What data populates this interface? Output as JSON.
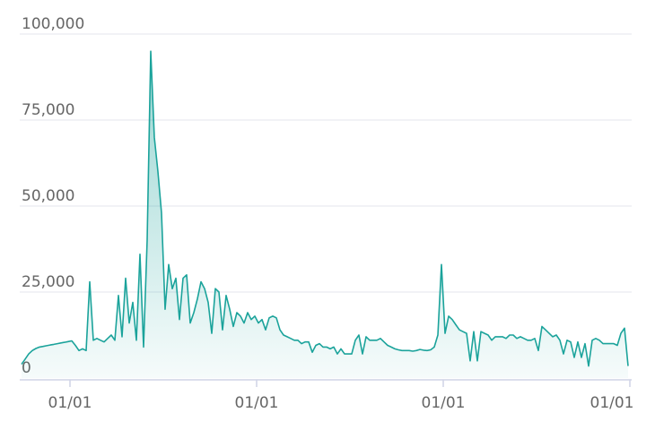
{
  "chart_data": {
    "type": "area",
    "color": "#1ba39b",
    "values": [
      4000,
      5500,
      7000,
      8000,
      8600,
      9000,
      9200,
      9400,
      9600,
      9800,
      10000,
      10200,
      10400,
      10600,
      10800,
      9500,
      8000,
      8500,
      8000,
      28000,
      11000,
      11500,
      11000,
      10500,
      11500,
      12500,
      11000,
      24000,
      12000,
      29000,
      16000,
      22000,
      11000,
      36000,
      9000,
      40000,
      95000,
      70000,
      60000,
      48000,
      20000,
      33000,
      26000,
      29000,
      17000,
      29000,
      30000,
      16000,
      19000,
      23000,
      28000,
      26000,
      22000,
      13000,
      26000,
      25000,
      14000,
      24000,
      20000,
      15000,
      19000,
      18000,
      16000,
      19000,
      17000,
      18000,
      16000,
      17000,
      14000,
      17500,
      18000,
      17500,
      14000,
      12500,
      12000,
      11500,
      11000,
      11000,
      10000,
      10500,
      10500,
      7500,
      9500,
      10000,
      9000,
      9000,
      8500,
      9000,
      7000,
      8500,
      7000,
      7000,
      7000,
      11000,
      12500,
      7000,
      12000,
      11000,
      11000,
      11000,
      11500,
      10500,
      9500,
      9000,
      8500,
      8200,
      8000,
      8000,
      8000,
      7800,
      8000,
      8300,
      8100,
      8000,
      8200,
      9000,
      12500,
      33000,
      13000,
      18000,
      17000,
      15500,
      14000,
      13500,
      13000,
      5000,
      13500,
      5000,
      13500,
      13000,
      12500,
      11000,
      12000,
      12000,
      12000,
      11500,
      12500,
      12500,
      11500,
      12000,
      11500,
      11000,
      11000,
      11500,
      8000,
      15000,
      14000,
      13000,
      12000,
      12500,
      11000,
      7000,
      11000,
      10500,
      6000,
      10500,
      6000,
      10000,
      3500,
      11000,
      11500,
      11000,
      10000,
      10000,
      10000,
      10000,
      9500,
      13000,
      14500,
      3500
    ],
    "xlim": [
      0,
      170
    ],
    "xticks": [
      {
        "value": 14,
        "label": "01/01"
      },
      {
        "value": 66,
        "label": "01/01"
      },
      {
        "value": 118,
        "label": "01/01"
      },
      {
        "value": 170,
        "label": "01/01"
      }
    ],
    "ylim": [
      0,
      100000
    ],
    "yticks": [
      0,
      {
        "value": 25000,
        "label": "25,000"
      },
      {
        "value": 50000,
        "label": "50,000"
      },
      {
        "value": 75000,
        "label": "75,000"
      },
      {
        "value": 100000,
        "label": "100,000"
      }
    ],
    "grid": true
  }
}
